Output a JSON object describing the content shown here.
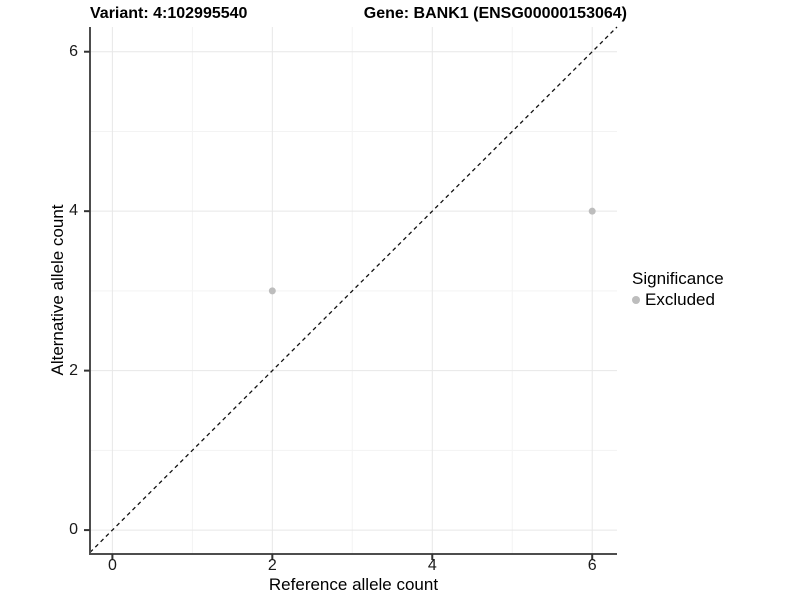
{
  "chart_data": {
    "type": "scatter",
    "title_left": "Variant: 4:102995540",
    "title_right": "Gene: BANK1 (ENSG00000153064)",
    "xlabel": "Reference allele count",
    "ylabel": "Alternative allele count",
    "xlim": [
      -0.28,
      6.31
    ],
    "ylim": [
      -0.3,
      6.31
    ],
    "x_ticks": [
      0,
      2,
      4,
      6
    ],
    "y_ticks": [
      0,
      2,
      4,
      6
    ],
    "x_minor_ticks": [
      1,
      3,
      5
    ],
    "y_minor_ticks": [
      1,
      3,
      5
    ],
    "grid": "major and minor gridlines, light gray, white background",
    "legend_position": "right",
    "legend_title": "Significance",
    "series": [
      {
        "name": "Excluded",
        "color": "#bdbdbd",
        "points": [
          {
            "x": 2,
            "y": 3
          },
          {
            "x": 6,
            "y": 4
          }
        ]
      }
    ],
    "reference_line": {
      "equation": "y = x",
      "style": "dashed",
      "color": "#111111"
    }
  },
  "colors": {
    "background": "#ffffff",
    "grid_major": "#e7e7e7",
    "grid_minor": "#f3f3f3",
    "axis_line": "#4d4d4d",
    "tick_mark": "#333333",
    "point": "#bdbdbd"
  }
}
